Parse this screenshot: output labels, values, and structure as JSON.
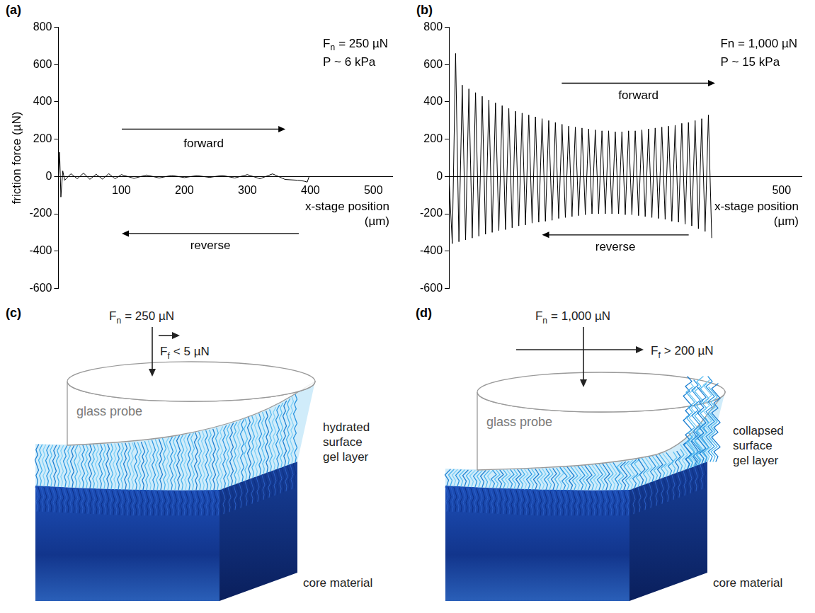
{
  "chart_data": [
    {
      "panel": "(a)",
      "type": "line",
      "annotations": [
        {
          "symbol": "F",
          "subscript": "n",
          "text": "= 250 µN"
        },
        "P ~ 6 kPa"
      ],
      "y_label": "friction force (µN)",
      "x_label": "x-stage position (µm)",
      "forward_label": "forward",
      "reverse_label": "reverse",
      "x": [
        0,
        2,
        4,
        7,
        10,
        20,
        30,
        40,
        50,
        60,
        70,
        80,
        90,
        100,
        120,
        140,
        160,
        180,
        200,
        220,
        240,
        260,
        280,
        300,
        320,
        340,
        360,
        380,
        390,
        395,
        398
      ],
      "values": [
        0,
        130,
        -110,
        30,
        -20,
        15,
        -12,
        18,
        -15,
        12,
        -14,
        15,
        -12,
        10,
        -10,
        8,
        -8,
        6,
        -6,
        5,
        -5,
        6,
        -8,
        10,
        -12,
        14,
        -16,
        -20,
        -25,
        -30,
        0
      ],
      "color": "#000000",
      "xlim": [
        0,
        530
      ],
      "xticks": [
        100,
        200,
        300,
        400,
        500
      ],
      "ylim": [
        -600,
        800
      ],
      "yticks": [
        -600,
        -400,
        -200,
        0,
        200,
        400,
        600,
        800
      ],
      "grid": false
    },
    {
      "panel": "(b)",
      "type": "line",
      "annotations": [
        "Fn = 1,000 µN",
        "P ~ 15 kPa"
      ],
      "x_label": "x-stage position (µm)",
      "forward_label": "forward",
      "reverse_label": "reverse",
      "x": [
        0,
        5,
        10,
        15,
        20,
        25,
        30,
        35,
        40,
        45,
        50,
        55,
        60,
        65,
        70,
        75,
        80,
        85,
        90,
        95,
        100,
        105,
        110,
        115,
        120,
        125,
        130,
        135,
        140,
        145,
        150,
        155,
        160,
        165,
        170,
        175,
        180,
        185,
        190,
        195,
        200,
        205,
        210,
        215,
        220,
        225,
        230,
        235,
        240,
        245,
        250,
        255,
        260,
        265,
        270,
        275,
        280,
        285,
        290,
        295,
        300,
        305,
        310,
        315,
        320,
        325,
        330,
        335,
        340,
        345,
        350,
        355,
        360,
        365,
        370,
        375,
        380,
        385,
        390,
        395
      ],
      "values": [
        0,
        -360,
        660,
        -350,
        490,
        -340,
        470,
        -330,
        450,
        -320,
        430,
        -310,
        410,
        -300,
        395,
        -290,
        380,
        -285,
        365,
        -275,
        350,
        -265,
        340,
        -260,
        330,
        -250,
        320,
        -245,
        310,
        -240,
        300,
        -235,
        290,
        -225,
        280,
        -220,
        270,
        -215,
        265,
        -210,
        260,
        -205,
        255,
        -200,
        250,
        -200,
        245,
        -200,
        245,
        -200,
        240,
        -200,
        240,
        -205,
        245,
        -205,
        245,
        -210,
        250,
        -215,
        255,
        -220,
        260,
        -225,
        265,
        -230,
        270,
        -240,
        275,
        -245,
        285,
        -255,
        290,
        -265,
        300,
        -280,
        310,
        -295,
        330,
        -330
      ],
      "color": "#000000",
      "xlim": [
        0,
        530
      ],
      "xticks": [
        500
      ],
      "ylim": [
        -600,
        800
      ],
      "yticks": [
        -600,
        -400,
        -200,
        0,
        200,
        400,
        600,
        800
      ],
      "grid": false
    }
  ],
  "diagrams": [
    {
      "panel": "(c)",
      "normal_force": {
        "symbol": "F",
        "subscript": "n",
        "text": "= 250 µN"
      },
      "friction_force": {
        "symbol": "F",
        "subscript": "f",
        "text": "< 5 µN"
      },
      "probe_label": "glass probe",
      "gel_label": "hydrated surface gel layer",
      "core_label": "core material"
    },
    {
      "panel": "(d)",
      "normal_force": {
        "symbol": "F",
        "subscript": "n",
        "text": "= 1,000 µN"
      },
      "friction_force": {
        "symbol": "F",
        "subscript": "f",
        "text": "> 200 µN"
      },
      "probe_label": "glass probe",
      "gel_label": "collapsed surface gel layer",
      "core_label": "core material"
    }
  ]
}
